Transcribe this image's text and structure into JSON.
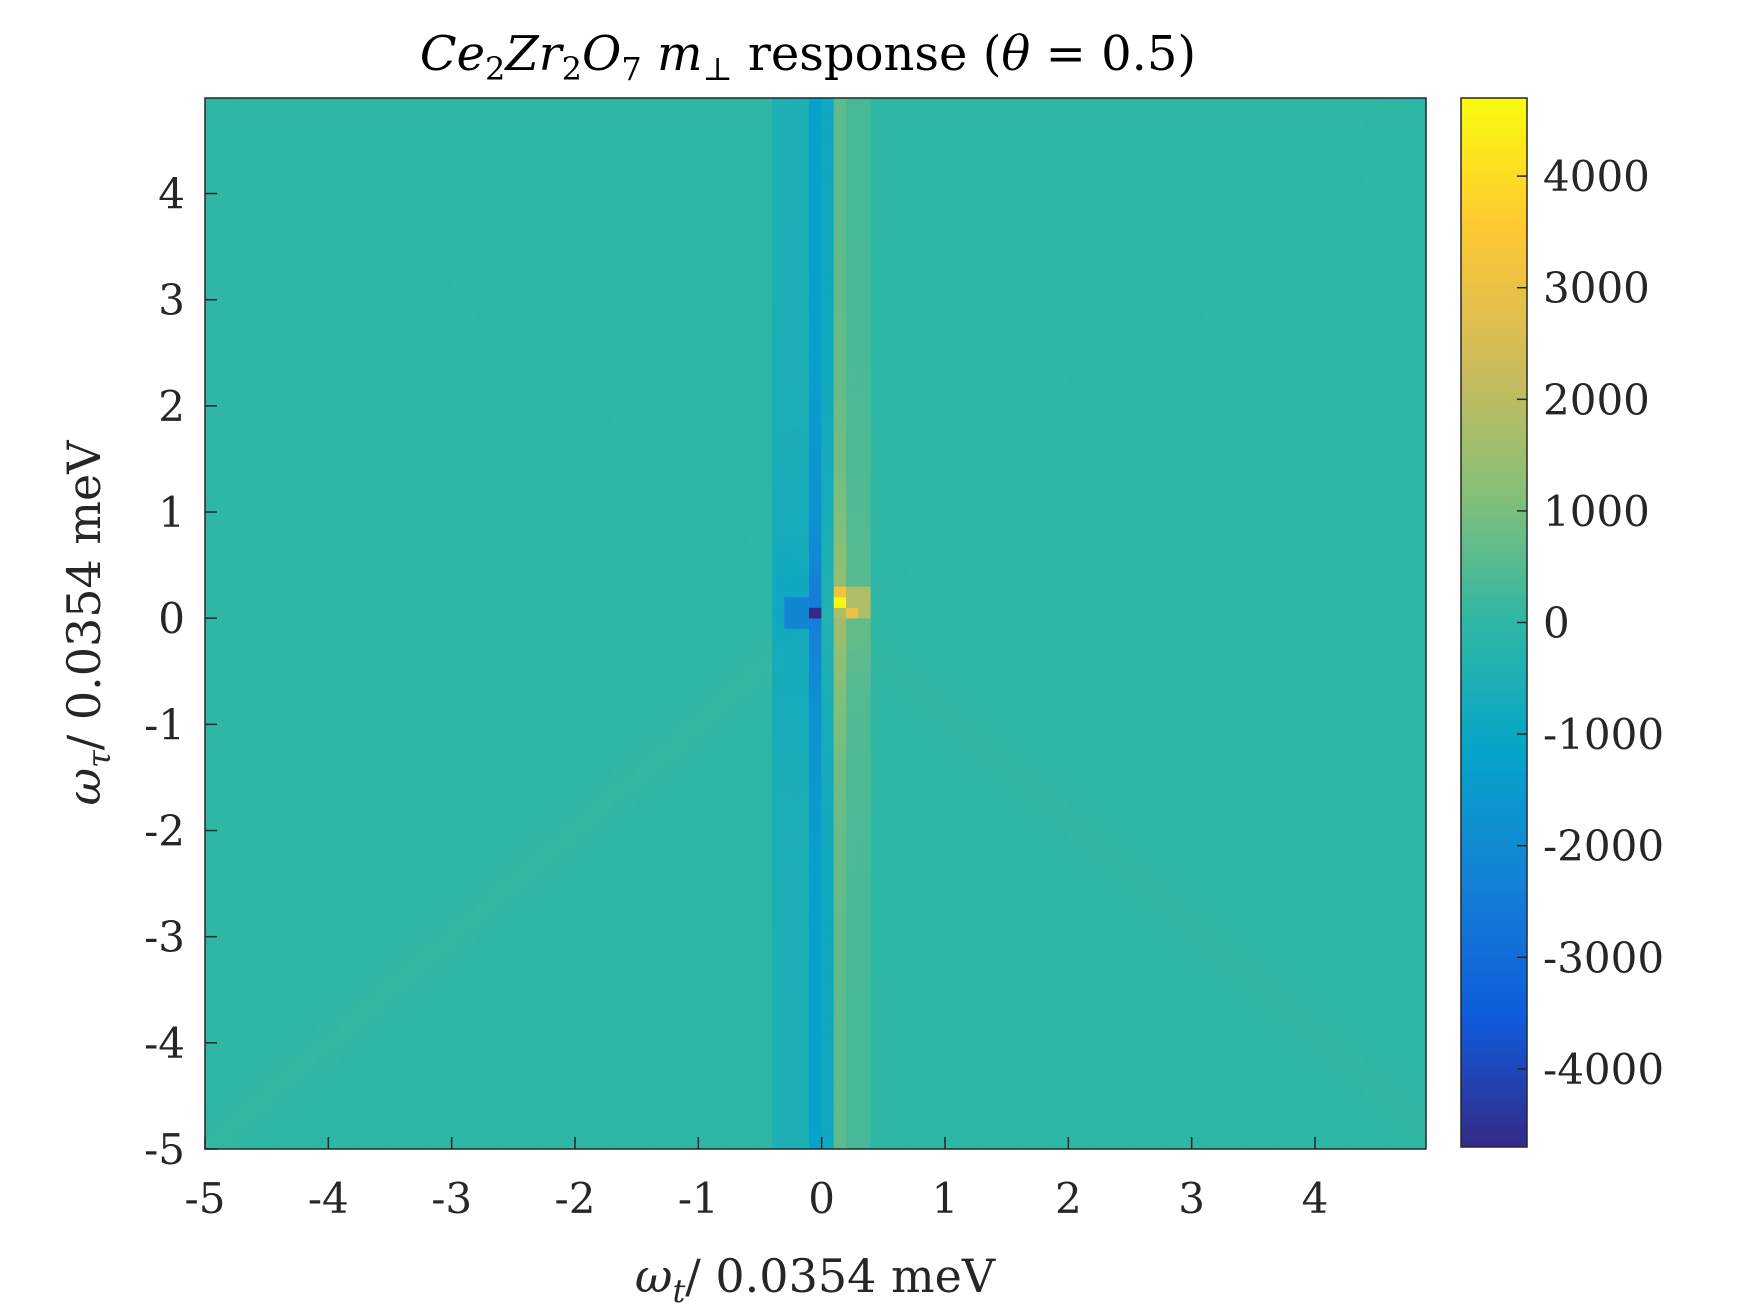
{
  "chart_data": {
    "type": "heatmap",
    "title": {
      "ce": "Ce",
      "sub1": "2",
      "zr": "Zr",
      "sub2": "2",
      "o": "O",
      "sub3": "7",
      "m": "m",
      "m_sub": "⊥",
      "rest": " response (",
      "theta": "θ",
      "eq": " = 0.5)"
    },
    "xlabel": {
      "omega": "ω",
      "sub": "t",
      "rest": "/ 0.0354 meV"
    },
    "ylabel": {
      "omega": "ω",
      "sub": "τ",
      "rest": "/ 0.0354 meV"
    },
    "xlim": [
      -5,
      4.9
    ],
    "ylim": [
      -5,
      4.9
    ],
    "xticks": [
      -5,
      -4,
      -3,
      -2,
      -1,
      0,
      1,
      2,
      3,
      4
    ],
    "yticks": [
      -5,
      -4,
      -3,
      -2,
      -1,
      0,
      1,
      2,
      3,
      4
    ],
    "xtick_labels": [
      "-5",
      "-4",
      "-3",
      "-2",
      "-1",
      "0",
      "1",
      "2",
      "3",
      "4"
    ],
    "ytick_labels": [
      "-5",
      "-4",
      "-3",
      "-2",
      "-1",
      "0",
      "1",
      "2",
      "3",
      "4"
    ],
    "grid_step": 0.1,
    "colorbar": {
      "range": [
        -4700,
        4700
      ],
      "ticks": [
        4000,
        3000,
        2000,
        1000,
        0,
        -1000,
        -2000,
        -3000,
        -4000
      ],
      "tick_labels": [
        "4000",
        "3000",
        "2000",
        "1000",
        "0",
        "-1000",
        "-2000",
        "-3000",
        "-4000"
      ],
      "colormap": "parula"
    },
    "features": [
      {
        "name": "background",
        "value": 0
      },
      {
        "name": "negative-column",
        "x_range": [
          -0.1,
          0.0
        ],
        "value_range": [
          -1200,
          -2600
        ]
      },
      {
        "name": "negative-band",
        "x_range": [
          -0.4,
          -0.1
        ],
        "value": -700
      },
      {
        "name": "positive-column",
        "x_range": [
          0.1,
          0.2
        ],
        "value_range": [
          600,
          1600
        ]
      },
      {
        "name": "positive-band",
        "x_range": [
          0.2,
          0.4
        ],
        "value": 500
      },
      {
        "name": "peak-max",
        "x": 0.1,
        "y": 0.1,
        "value": 4600
      },
      {
        "name": "peak-orange",
        "x": 0.1,
        "y": 0.2,
        "value": 3200
      },
      {
        "name": "peak-orange-right",
        "x": 0.2,
        "y": 0.0,
        "value": 3000
      },
      {
        "name": "peak-min",
        "x": -0.1,
        "y": 0.0,
        "value": -4700
      }
    ],
    "grid": false,
    "legend": "none"
  }
}
